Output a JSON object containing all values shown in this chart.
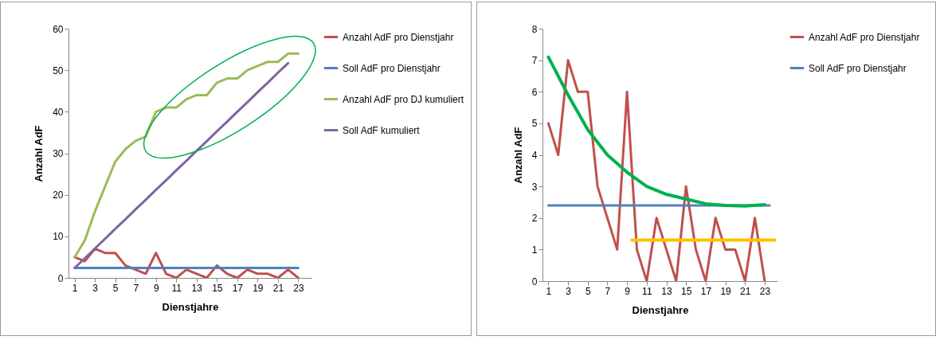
{
  "chart_data": [
    {
      "type": "line",
      "xlabel": "Dienstjahre",
      "ylabel": "Anzahl AdF",
      "x": [
        1,
        2,
        3,
        4,
        5,
        6,
        7,
        8,
        9,
        10,
        11,
        12,
        13,
        14,
        15,
        16,
        17,
        18,
        19,
        20,
        21,
        22,
        23
      ],
      "xlim": [
        0.4,
        24.3
      ],
      "xticks": [
        1,
        3,
        5,
        7,
        9,
        11,
        13,
        15,
        17,
        19,
        21,
        23
      ],
      "ylim": [
        0,
        60
      ],
      "yticks": [
        0,
        10,
        20,
        30,
        40,
        50,
        60
      ],
      "legend": "right",
      "series": [
        {
          "name": "Anzahl AdF pro Dienstjahr",
          "color": "#c0504d",
          "values": [
            5,
            4,
            7,
            6,
            6,
            3,
            2,
            1,
            6,
            1,
            0,
            2,
            1,
            0,
            3,
            1,
            0,
            2,
            1,
            1,
            0,
            2,
            0
          ]
        },
        {
          "name": "Soll AdF pro Dienstjahr",
          "color": "#4f81bd",
          "values": [
            2.4,
            2.4,
            2.4,
            2.4,
            2.4,
            2.4,
            2.4,
            2.4,
            2.4,
            2.4,
            2.4,
            2.4,
            2.4,
            2.4,
            2.4,
            2.4,
            2.4,
            2.4,
            2.4,
            2.4,
            2.4,
            2.4,
            2.4
          ]
        },
        {
          "name": "Anzahl AdF pro DJ kumuliert",
          "color": "#9bbb59",
          "values": [
            5,
            9,
            16,
            22,
            28,
            31,
            33,
            34,
            40,
            41,
            41,
            43,
            44,
            44,
            47,
            48,
            48,
            50,
            51,
            52,
            52,
            54,
            54
          ]
        },
        {
          "name": "Soll AdF kumuliert",
          "color": "#8064a2",
          "values": [
            2.4,
            4.7,
            7.1,
            9.4,
            11.8,
            14.1,
            16.5,
            18.8,
            21.2,
            23.5,
            25.9,
            28.2,
            30.6,
            32.9,
            35.3,
            37.6,
            40,
            42.3,
            44.7,
            47,
            49.4,
            51.7,
            null
          ]
        }
      ]
    },
    {
      "type": "line",
      "xlabel": "Dienstjahre",
      "ylabel": "Anzahl AdF",
      "x": [
        1,
        2,
        3,
        4,
        5,
        6,
        7,
        8,
        9,
        10,
        11,
        12,
        13,
        14,
        15,
        16,
        17,
        18,
        19,
        20,
        21,
        22,
        23
      ],
      "xlim": [
        0.4,
        24.3
      ],
      "xticks": [
        1,
        3,
        5,
        7,
        9,
        11,
        13,
        15,
        17,
        19,
        21,
        23
      ],
      "ylim": [
        0,
        8
      ],
      "yticks": [
        0,
        1,
        2,
        3,
        4,
        5,
        6,
        7,
        8
      ],
      "legend": "right",
      "series": [
        {
          "name": "Anzahl AdF pro Dienstjahr",
          "color": "#c0504d",
          "values": [
            5,
            4,
            7,
            6,
            6,
            3,
            2,
            1,
            6,
            1,
            0,
            2,
            1,
            0,
            3,
            1,
            0,
            2,
            1,
            1,
            0,
            2,
            0
          ]
        },
        {
          "name": "Soll AdF pro Dienstjahr",
          "color": "#4f81bd",
          "x": [
            1,
            23.5
          ],
          "values": [
            2.4,
            2.4
          ]
        },
        {
          "color": "#00b050",
          "x": [
            1,
            3,
            5,
            7,
            9,
            11,
            13,
            15,
            17,
            19,
            21,
            23
          ],
          "values": [
            7.1,
            5.9,
            4.8,
            4,
            3.45,
            3,
            2.75,
            2.6,
            2.45,
            2.4,
            2.38,
            2.42
          ]
        },
        {
          "color": "#ffc000",
          "x": [
            9.5,
            24
          ],
          "values": [
            1.3,
            1.3
          ]
        }
      ]
    }
  ]
}
